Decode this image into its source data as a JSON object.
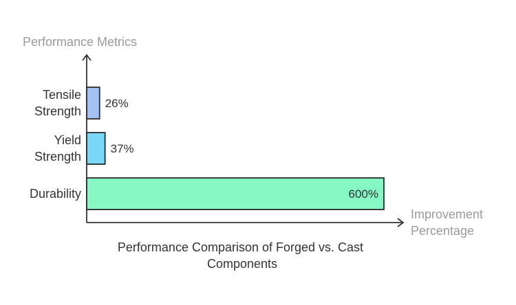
{
  "chart_data": {
    "type": "bar",
    "orientation": "horizontal",
    "title": "Performance Comparison of Forged vs. Cast Components",
    "ylabel": "Performance Metrics",
    "xlabel": "Improvement Percentage",
    "xlim": [
      0,
      600
    ],
    "categories": [
      "Tensile Strength",
      "Yield Strength",
      "Durability"
    ],
    "category_lines": [
      [
        "Tensile",
        "Strength"
      ],
      [
        "Yield",
        "Strength"
      ],
      [
        "Durability"
      ]
    ],
    "values": [
      26,
      37,
      600
    ],
    "value_labels": [
      "26%",
      "37%",
      "600%"
    ],
    "colors": [
      "#a4c2f4",
      "#79d9f7",
      "#84f7c3"
    ],
    "stroke_color": "#2b2b2b",
    "grid": false,
    "legend": "none"
  }
}
